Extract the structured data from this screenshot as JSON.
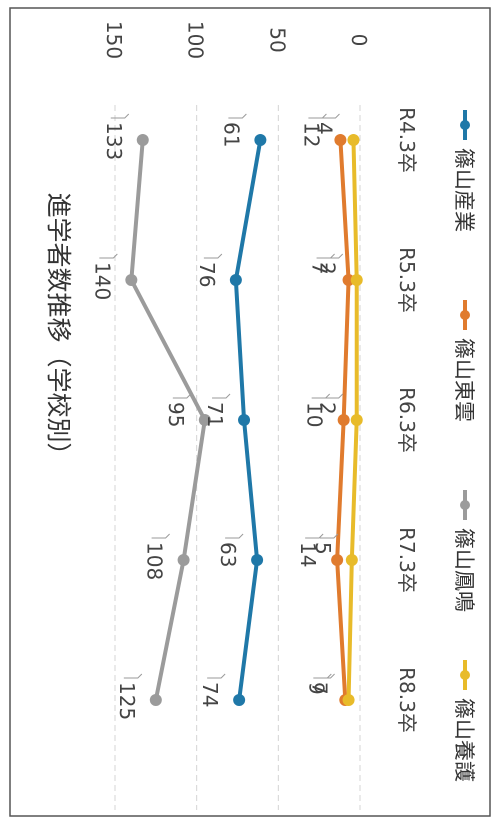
{
  "chart_data": {
    "type": "line",
    "orientation": "rotated-90-clockwise",
    "title": "進学者数推移（学校別）",
    "categories": [
      "R4.3卒",
      "R5.3卒",
      "R6.3卒",
      "R7.3卒",
      "R8.3卒"
    ],
    "ylim": [
      0,
      150
    ],
    "yticks": [
      "0",
      "50",
      "100",
      "150"
    ],
    "grid": true,
    "legend_position": "bottom",
    "series": [
      {
        "name": "篠山産業",
        "color": "#1f78a8",
        "values": [
          61,
          76,
          71,
          63,
          74
        ],
        "labels": [
          "61",
          "76",
          "71",
          "63",
          "74"
        ]
      },
      {
        "name": "篠山東雲",
        "color": "#e07b2e",
        "values": [
          12,
          7,
          10,
          14,
          9
        ],
        "labels": [
          "12",
          "7",
          "10",
          "14",
          "9"
        ]
      },
      {
        "name": "篠山鳳鳴",
        "color": "#9b9b9b",
        "values": [
          133,
          140,
          95,
          108,
          125
        ],
        "labels": [
          "133",
          "140",
          "95",
          "108",
          "125"
        ]
      },
      {
        "name": "篠山養護",
        "color": "#e8bb2a",
        "values": [
          4,
          2,
          2,
          5,
          7
        ],
        "labels": [
          "4",
          "2",
          "2",
          "5",
          "7"
        ]
      }
    ]
  }
}
